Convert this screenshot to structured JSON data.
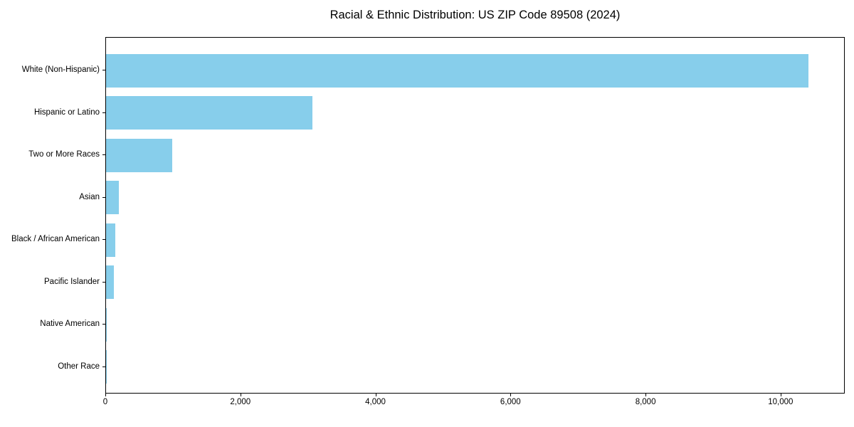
{
  "chart_data": {
    "type": "bar",
    "orientation": "horizontal",
    "title": "Racial & Ethnic Distribution: US ZIP Code 89508 (2024)",
    "categories": [
      "White (Non-Hispanic)",
      "Hispanic or Latino",
      "Two or More Races",
      "Asian",
      "Black / African American",
      "Pacific Islander",
      "Native American",
      "Other Race"
    ],
    "values": [
      10420,
      3060,
      980,
      190,
      135,
      120,
      15,
      5
    ],
    "xlabel": "",
    "ylabel": "",
    "xlim": [
      0,
      10950
    ],
    "xticks": [
      0,
      2000,
      4000,
      6000,
      8000,
      10000
    ],
    "xtick_labels": [
      "0",
      "2,000",
      "4,000",
      "6,000",
      "8,000",
      "10,000"
    ],
    "bar_color": "#87CEEB",
    "spine_color": "#000000",
    "text_color": "#000000",
    "grid": false,
    "legend": null
  }
}
